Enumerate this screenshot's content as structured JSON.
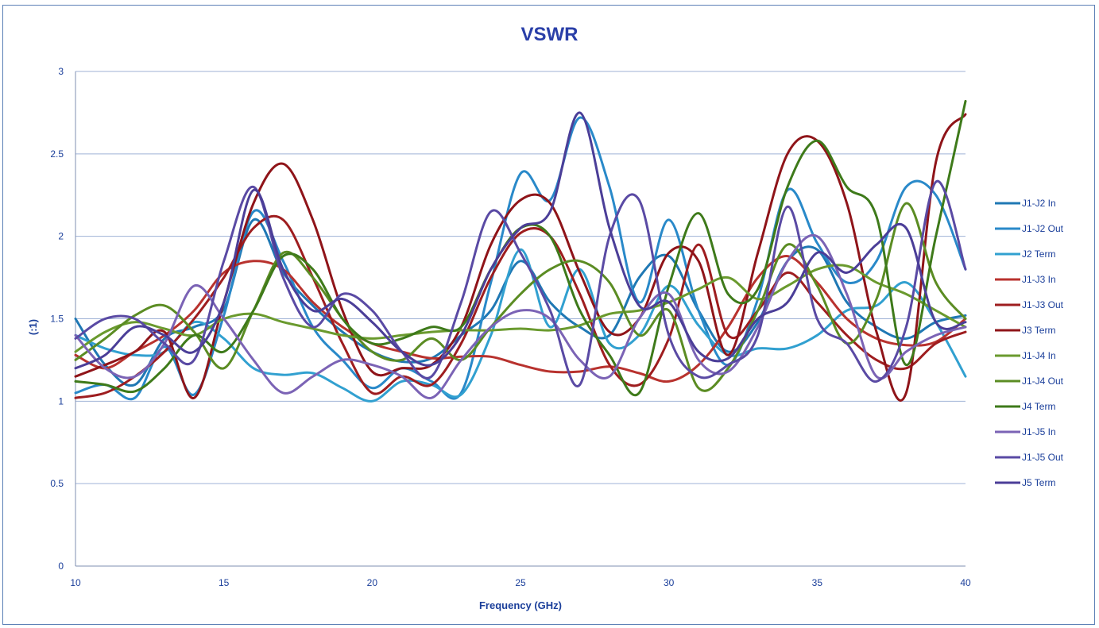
{
  "chart_data": {
    "type": "line",
    "title": "VSWR",
    "xlabel": "Frequency (GHz)",
    "ylabel": "(:1)",
    "xlim": [
      10,
      40
    ],
    "ylim": [
      0,
      3
    ],
    "x_ticks": [
      "10",
      "15",
      "20",
      "25",
      "30",
      "35",
      "40"
    ],
    "y_ticks": [
      "0",
      "0.5",
      "1",
      "1.5",
      "2",
      "2.5",
      "3"
    ],
    "grid": "horizontal",
    "legend_position": "right",
    "series": [
      {
        "name": "J1-J2 In",
        "color": "#1f78b4",
        "x": [
          10,
          11,
          12,
          13,
          14,
          15,
          16,
          17,
          18,
          19,
          20,
          21,
          22,
          23,
          24,
          25,
          26,
          27,
          28,
          29,
          30,
          31,
          32,
          33,
          34,
          35,
          36,
          37,
          38,
          39,
          40
        ],
        "y": [
          1.5,
          1.22,
          1.1,
          1.38,
          1.45,
          1.56,
          2.1,
          1.78,
          1.58,
          1.42,
          1.3,
          1.24,
          1.26,
          1.4,
          1.55,
          1.85,
          1.6,
          1.45,
          1.4,
          1.75,
          1.88,
          1.55,
          1.3,
          1.48,
          1.85,
          1.92,
          1.6,
          1.45,
          1.38,
          1.48,
          1.52
        ]
      },
      {
        "name": "J1-J2 Out",
        "color": "#2989c9",
        "x": [
          10,
          11,
          12,
          13,
          14,
          15,
          16,
          17,
          18,
          19,
          20,
          21,
          22,
          23,
          24,
          25,
          26,
          27,
          28,
          29,
          30,
          31,
          32,
          33,
          34,
          35,
          36,
          37,
          38,
          39,
          40
        ],
        "y": [
          1.05,
          1.1,
          1.02,
          1.33,
          1.04,
          1.52,
          2.15,
          1.85,
          1.45,
          1.25,
          1.08,
          1.2,
          1.12,
          1.05,
          1.72,
          2.38,
          2.22,
          2.72,
          2.3,
          1.6,
          2.1,
          1.55,
          1.22,
          1.62,
          2.28,
          1.96,
          1.72,
          1.85,
          2.3,
          2.25,
          1.8
        ]
      },
      {
        "name": "J2 Term",
        "color": "#31a0d0",
        "x": [
          10,
          11,
          12,
          13,
          14,
          15,
          16,
          17,
          18,
          19,
          20,
          21,
          22,
          23,
          24,
          25,
          26,
          27,
          28,
          29,
          30,
          31,
          32,
          33,
          34,
          35,
          36,
          37,
          38,
          39,
          40
        ],
        "y": [
          1.4,
          1.32,
          1.28,
          1.3,
          1.48,
          1.38,
          1.2,
          1.16,
          1.17,
          1.08,
          1.0,
          1.12,
          1.1,
          1.04,
          1.4,
          1.92,
          1.45,
          1.8,
          1.35,
          1.4,
          1.7,
          1.46,
          1.28,
          1.32,
          1.32,
          1.4,
          1.55,
          1.58,
          1.72,
          1.48,
          1.15
        ]
      },
      {
        "name": "J1-J3 In",
        "color": "#b8322e",
        "x": [
          10,
          11,
          12,
          13,
          14,
          15,
          16,
          17,
          18,
          19,
          20,
          21,
          22,
          23,
          24,
          25,
          26,
          27,
          28,
          29,
          30,
          31,
          32,
          33,
          34,
          35,
          36,
          37,
          38,
          39,
          40
        ],
        "y": [
          1.28,
          1.2,
          1.3,
          1.4,
          1.55,
          1.78,
          1.85,
          1.8,
          1.6,
          1.45,
          1.35,
          1.3,
          1.26,
          1.27,
          1.27,
          1.22,
          1.18,
          1.18,
          1.21,
          1.17,
          1.12,
          1.22,
          1.45,
          1.75,
          1.88,
          1.72,
          1.5,
          1.38,
          1.34,
          1.36,
          1.5
        ]
      },
      {
        "name": "J1-J3 Out",
        "color": "#9e1d1f",
        "x": [
          10,
          11,
          12,
          13,
          14,
          15,
          16,
          17,
          18,
          19,
          20,
          21,
          22,
          23,
          24,
          25,
          26,
          27,
          28,
          29,
          30,
          31,
          32,
          33,
          34,
          35,
          36,
          37,
          38,
          39,
          40
        ],
        "y": [
          1.02,
          1.05,
          1.15,
          1.3,
          1.5,
          1.75,
          2.05,
          2.1,
          1.75,
          1.35,
          1.05,
          1.15,
          1.1,
          1.35,
          1.75,
          2.02,
          2.0,
          1.65,
          1.22,
          1.1,
          1.38,
          1.95,
          1.4,
          1.55,
          1.78,
          1.6,
          1.4,
          1.25,
          1.2,
          1.35,
          1.42
        ]
      },
      {
        "name": "J3 Term",
        "color": "#8f1419",
        "x": [
          10,
          11,
          12,
          13,
          14,
          15,
          16,
          17,
          18,
          19,
          20,
          21,
          22,
          23,
          24,
          25,
          26,
          27,
          28,
          29,
          30,
          31,
          32,
          33,
          34,
          35,
          36,
          37,
          38,
          39,
          40
        ],
        "y": [
          1.15,
          1.22,
          1.3,
          1.42,
          1.02,
          1.6,
          2.2,
          2.44,
          2.1,
          1.55,
          1.18,
          1.2,
          1.22,
          1.45,
          1.95,
          2.22,
          2.2,
          1.78,
          1.42,
          1.5,
          1.9,
          1.85,
          1.28,
          1.9,
          2.5,
          2.58,
          2.2,
          1.42,
          1.05,
          2.45,
          2.74
        ]
      },
      {
        "name": "J1-J4 In",
        "color": "#6a9a2e",
        "x": [
          10,
          11,
          12,
          13,
          14,
          15,
          16,
          17,
          18,
          19,
          20,
          21,
          22,
          23,
          24,
          25,
          26,
          27,
          28,
          29,
          30,
          31,
          32,
          33,
          34,
          35,
          36,
          37,
          38,
          39,
          40
        ],
        "y": [
          1.3,
          1.42,
          1.48,
          1.44,
          1.4,
          1.5,
          1.53,
          1.48,
          1.44,
          1.4,
          1.38,
          1.4,
          1.42,
          1.43,
          1.43,
          1.44,
          1.43,
          1.46,
          1.53,
          1.55,
          1.6,
          1.68,
          1.75,
          1.62,
          1.7,
          1.8,
          1.82,
          1.72,
          1.65,
          1.55,
          1.45
        ]
      },
      {
        "name": "J1-J4 Out",
        "color": "#5b8c23",
        "x": [
          10,
          11,
          12,
          13,
          14,
          15,
          16,
          17,
          18,
          19,
          20,
          21,
          22,
          23,
          24,
          25,
          26,
          27,
          28,
          29,
          30,
          31,
          32,
          33,
          34,
          35,
          36,
          37,
          38,
          39,
          40
        ],
        "y": [
          1.25,
          1.38,
          1.52,
          1.58,
          1.42,
          1.2,
          1.55,
          1.9,
          1.75,
          1.5,
          1.3,
          1.25,
          1.38,
          1.25,
          1.45,
          1.65,
          1.8,
          1.85,
          1.72,
          1.4,
          1.55,
          1.08,
          1.2,
          1.55,
          1.95,
          1.7,
          1.35,
          1.62,
          2.2,
          1.72,
          1.5
        ]
      },
      {
        "name": "J4 Term",
        "color": "#3e7a1a",
        "x": [
          10,
          11,
          12,
          13,
          14,
          15,
          16,
          17,
          18,
          19,
          20,
          21,
          22,
          23,
          24,
          25,
          26,
          27,
          28,
          29,
          30,
          31,
          32,
          33,
          34,
          35,
          36,
          37,
          38,
          39,
          40
        ],
        "y": [
          1.12,
          1.1,
          1.06,
          1.2,
          1.4,
          1.3,
          1.55,
          1.88,
          1.8,
          1.5,
          1.35,
          1.38,
          1.45,
          1.45,
          1.8,
          2.05,
          2.0,
          1.55,
          1.28,
          1.05,
          1.7,
          2.14,
          1.65,
          1.68,
          2.3,
          2.58,
          2.3,
          2.12,
          1.22,
          2.0,
          2.82
        ]
      },
      {
        "name": "J1-J5 In",
        "color": "#7b63b5",
        "x": [
          10,
          11,
          12,
          13,
          14,
          15,
          16,
          17,
          18,
          19,
          20,
          21,
          22,
          23,
          24,
          25,
          26,
          27,
          28,
          29,
          30,
          31,
          32,
          33,
          34,
          35,
          36,
          37,
          38,
          39,
          40
        ],
        "y": [
          1.4,
          1.2,
          1.15,
          1.35,
          1.7,
          1.5,
          1.25,
          1.05,
          1.15,
          1.25,
          1.22,
          1.15,
          1.02,
          1.25,
          1.45,
          1.55,
          1.5,
          1.25,
          1.15,
          1.5,
          1.65,
          1.25,
          1.18,
          1.45,
          1.85,
          2.0,
          1.65,
          1.15,
          1.3,
          1.4,
          1.45
        ]
      },
      {
        "name": "J1-J5 Out",
        "color": "#5a4aa4",
        "x": [
          10,
          11,
          12,
          13,
          14,
          15,
          16,
          17,
          18,
          19,
          20,
          21,
          22,
          23,
          24,
          25,
          26,
          27,
          28,
          29,
          30,
          31,
          32,
          33,
          34,
          35,
          36,
          37,
          38,
          39,
          40
        ],
        "y": [
          1.38,
          1.5,
          1.5,
          1.35,
          1.25,
          1.85,
          2.3,
          1.75,
          1.45,
          1.65,
          1.55,
          1.3,
          1.15,
          1.6,
          2.15,
          1.9,
          1.55,
          1.1,
          2.0,
          2.22,
          1.4,
          1.15,
          1.22,
          1.4,
          2.18,
          1.5,
          1.35,
          1.12,
          1.45,
          2.33,
          1.8
        ]
      },
      {
        "name": "J5 Term",
        "color": "#4b3e98",
        "x": [
          10,
          11,
          12,
          13,
          14,
          15,
          16,
          17,
          18,
          19,
          20,
          21,
          22,
          23,
          24,
          25,
          26,
          27,
          28,
          29,
          30,
          31,
          32,
          33,
          34,
          35,
          36,
          37,
          38,
          39,
          40
        ],
        "y": [
          1.2,
          1.28,
          1.45,
          1.4,
          1.3,
          1.6,
          2.28,
          1.8,
          1.55,
          1.62,
          1.48,
          1.3,
          1.22,
          1.4,
          1.8,
          2.05,
          2.15,
          2.75,
          2.05,
          1.58,
          1.6,
          1.3,
          1.26,
          1.5,
          1.6,
          1.9,
          1.78,
          1.95,
          2.05,
          1.48,
          1.48
        ]
      }
    ]
  }
}
